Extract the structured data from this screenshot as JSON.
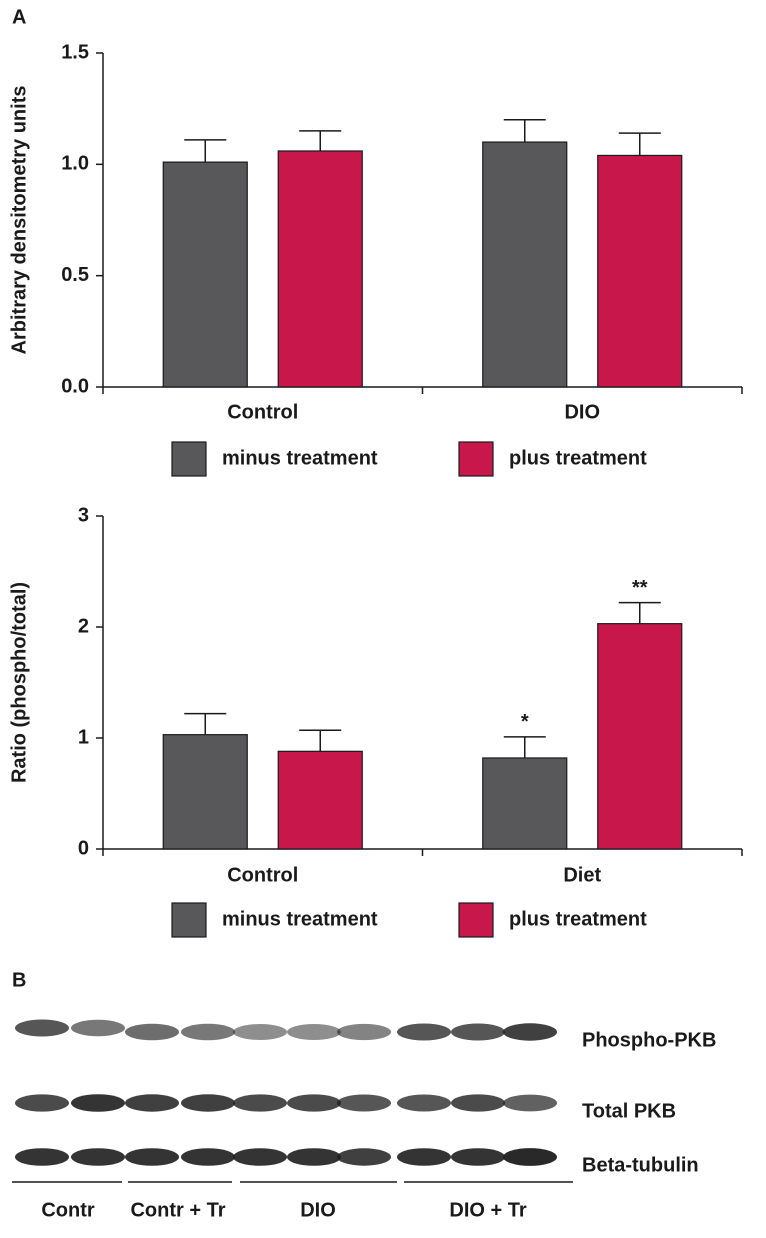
{
  "panel_labels": [
    "A",
    "B"
  ],
  "chart_data": [
    {
      "type": "bar",
      "ylabel": "Arbitrary densitometry units",
      "categories": [
        "Control",
        "DIO"
      ],
      "series": [
        {
          "name": "minus treatment",
          "color": "#58585a",
          "values": [
            1.01,
            1.1
          ],
          "errors": [
            0.1,
            0.1
          ]
        },
        {
          "name": "plus treatment",
          "color": "#c8174a",
          "values": [
            1.06,
            1.04
          ],
          "errors": [
            0.09,
            0.1
          ]
        }
      ],
      "ylim": [
        0,
        1.5
      ],
      "yticks": [
        {
          "value": 0,
          "label": "0.0"
        },
        {
          "value": 0.5,
          "label": "0.5"
        },
        {
          "value": 1,
          "label": "1.0"
        },
        {
          "value": 1.5,
          "label": "1.5"
        }
      ],
      "legend": "bottom"
    },
    {
      "type": "bar",
      "ylabel": "Ratio (phospho/total)",
      "categories": [
        "Control",
        "Diet"
      ],
      "series": [
        {
          "name": "minus treatment",
          "color": "#58585a",
          "values": [
            1.03,
            0.82
          ],
          "errors": [
            0.19,
            0.19
          ],
          "annotations": [
            null,
            "*"
          ]
        },
        {
          "name": "plus treatment",
          "color": "#c8174a",
          "values": [
            0.88,
            2.03
          ],
          "errors": [
            0.19,
            0.19
          ],
          "annotations": [
            null,
            "**"
          ]
        }
      ],
      "ylim": [
        0,
        3
      ],
      "yticks": [
        0,
        1,
        2,
        3
      ],
      "legend": "bottom"
    }
  ],
  "blot": {
    "rows": [
      "Phospho-PKB",
      "Total PKB",
      "Beta-tubulin"
    ],
    "groups": [
      "Contr",
      "Contr + Tr",
      "DIO",
      "DIO + Tr"
    ]
  }
}
